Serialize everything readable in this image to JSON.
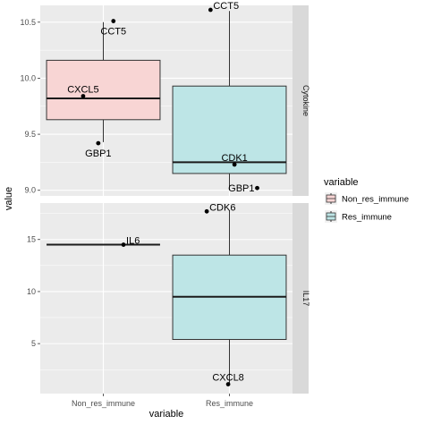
{
  "chart_data": {
    "type": "boxplot",
    "xlabel": "variable",
    "ylabel": "value",
    "categories": [
      "Non_res_immune",
      "Res_immune"
    ],
    "grid": true,
    "legend": {
      "title": "variable",
      "placement": "right",
      "entries": [
        "Non_res_immune",
        "Res_immune"
      ]
    },
    "colors": {
      "Non_res_immune": "#f8d5d4",
      "Res_immune": "#bde5e6",
      "panel_bg": "#ebebeb",
      "strip_bg": "#d9d9d9"
    },
    "facets": [
      {
        "name": "Cytokine",
        "ylim": [
          8.95,
          10.65
        ],
        "yticks": [
          9.0,
          9.5,
          10.0,
          10.5
        ],
        "ytick_labels": [
          "9.0",
          "9.5",
          "10.0",
          "10.5"
        ],
        "boxes": [
          {
            "category": "Non_res_immune",
            "q1": 9.63,
            "median": 9.82,
            "q3": 10.16,
            "whisker_low": 9.43,
            "whisker_high": 10.5
          },
          {
            "category": "Res_immune",
            "q1": 9.15,
            "median": 9.25,
            "q3": 9.93,
            "whisker_low": 9.0,
            "whisker_high": 10.6
          }
        ],
        "points": [
          {
            "category": "Non_res_immune",
            "offset": 0.08,
            "value": 10.51,
            "label": "CCT5",
            "label_pos": "below"
          },
          {
            "category": "Non_res_immune",
            "offset": -0.16,
            "value": 9.84,
            "label": "CXCL5",
            "label_pos": "above"
          },
          {
            "category": "Non_res_immune",
            "offset": -0.04,
            "value": 9.42,
            "label": "GBP1",
            "label_pos": "below"
          },
          {
            "category": "Res_immune",
            "offset": -0.15,
            "value": 10.61,
            "label": "CCT5",
            "label_pos": "right"
          },
          {
            "category": "Res_immune",
            "offset": 0.04,
            "value": 9.23,
            "label": "CDK1",
            "label_pos": "above"
          },
          {
            "category": "Res_immune",
            "offset": 0.22,
            "value": 9.02,
            "label": "GBP1",
            "label_pos": "left"
          }
        ]
      },
      {
        "name": "IL17",
        "ylim": [
          0.2,
          18.5
        ],
        "yticks": [
          5,
          10,
          15
        ],
        "ytick_labels": [
          "5",
          "10",
          "15"
        ],
        "boxes": [
          {
            "category": "Non_res_immune",
            "q1": 14.5,
            "median": 14.5,
            "q3": 14.5,
            "whisker_low": 14.5,
            "whisker_high": 14.5
          },
          {
            "category": "Res_immune",
            "q1": 5.4,
            "median": 9.5,
            "q3": 13.5,
            "whisker_low": 1.2,
            "whisker_high": 17.8
          }
        ],
        "points": [
          {
            "category": "Non_res_immune",
            "offset": 0.16,
            "value": 14.5,
            "label": "IL6",
            "label_pos": "right"
          },
          {
            "category": "Res_immune",
            "offset": -0.18,
            "value": 17.7,
            "label": "CDK6",
            "label_pos": "right"
          },
          {
            "category": "Res_immune",
            "offset": -0.01,
            "value": 1.1,
            "label": "CXCL8",
            "label_pos": "above"
          }
        ]
      }
    ]
  }
}
